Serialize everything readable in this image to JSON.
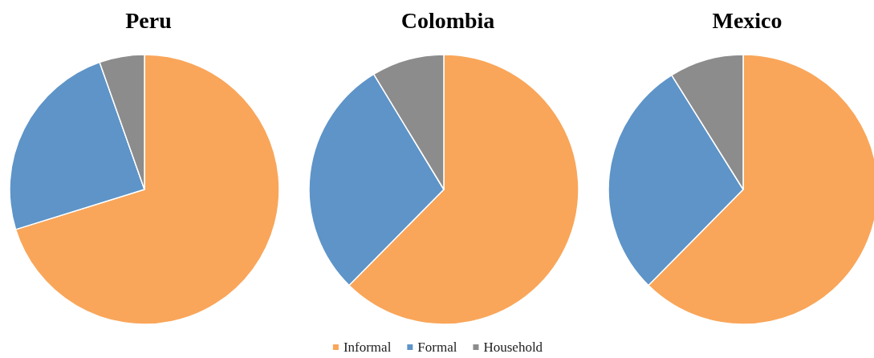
{
  "chart_data": {
    "type": "pie",
    "categories": [
      "Informal",
      "Formal",
      "Household"
    ],
    "colors": [
      "#f9a65a",
      "#5e94c8",
      "#8c8c8c"
    ],
    "legend": "bottom",
    "series": [
      {
        "name": "Peru",
        "values": [
          70.2,
          24.4,
          5.4
        ]
      },
      {
        "name": "Colombia",
        "values": [
          62.4,
          28.9,
          8.7
        ]
      },
      {
        "name": "Mexico",
        "values": [
          62.4,
          28.7,
          8.9
        ]
      }
    ]
  }
}
